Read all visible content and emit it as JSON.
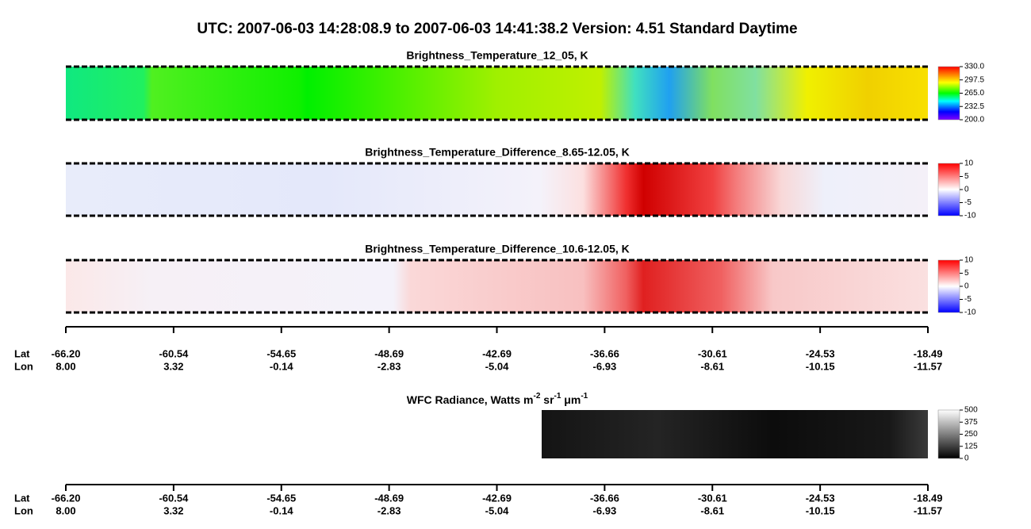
{
  "title": "UTC:  2007-06-03   14:28:08.9  to  2007-06-03   14:41:38.2    Version: 4.51  Standard Daytime",
  "chart_data": [
    {
      "type": "image",
      "title": "Brightness_Temperature_12_05, K",
      "colorscale": "rainbow",
      "clim": [
        200,
        330
      ],
      "cticks": [
        {
          "value": 330,
          "label": "330.0"
        },
        297.5,
        {
          "value": 265,
          "label": "265.0"
        },
        232.5,
        {
          "value": 200,
          "label": "200.0"
        }
      ]
    },
    {
      "type": "image",
      "title": "Brightness_Temperature_Difference_8.65-12.05, K",
      "colorscale": "bwr",
      "clim": [
        -10,
        10
      ],
      "cticks": [
        10,
        5,
        0,
        -5,
        -10
      ]
    },
    {
      "type": "image",
      "title": "Brightness_Temperature_Difference_10.6-12.05, K",
      "colorscale": "bwr",
      "clim": [
        -10,
        10
      ],
      "cticks": [
        10,
        5,
        0,
        -5,
        -10
      ]
    },
    {
      "type": "image",
      "title": [
        "WFC Radiance, Watts m",
        "-2",
        " sr",
        "-1",
        " μm",
        "-1"
      ],
      "colorscale": "gray",
      "clim": [
        0,
        500
      ],
      "cticks": [
        500,
        375,
        250,
        125,
        0
      ]
    }
  ],
  "track_axes": [
    {
      "lat_label": "Lat",
      "lon_label": "Lon",
      "lat": [
        {
          "value": -66.2,
          "label": "-66.20"
        },
        -60.54,
        -54.65,
        -48.69,
        -42.69,
        -36.66,
        -30.61,
        -24.53,
        -18.49
      ],
      "lon": [
        {
          "value": 8,
          "label": "8.00"
        },
        3.32,
        -0.14,
        -2.83,
        -5.04,
        -6.93,
        -8.61,
        -10.15,
        -11.57
      ]
    },
    {
      "lat_label": "Lat",
      "lon_label": "Lon",
      "lat": [
        {
          "value": -66.2,
          "label": "-66.20"
        },
        -60.54,
        -54.65,
        -48.69,
        -42.69,
        -36.66,
        -30.61,
        -24.53,
        -18.49
      ],
      "lon": [
        {
          "value": 8,
          "label": "8.00"
        },
        3.32,
        -0.14,
        -2.83,
        -5.04,
        -6.93,
        -8.61,
        -10.15,
        -11.57
      ]
    }
  ]
}
